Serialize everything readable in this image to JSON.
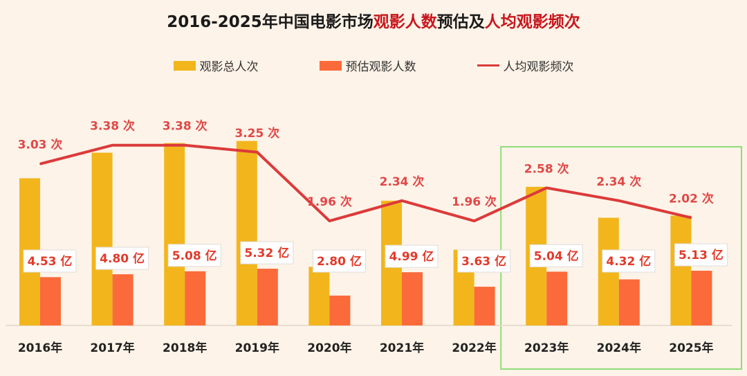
{
  "chart_data": {
    "type": "bar",
    "title_parts": [
      "2016-2025年中国电影市场",
      "观影人数",
      "预估及",
      "人均观影频次"
    ],
    "categories": [
      "2016年",
      "2017年",
      "2018年",
      "2019年",
      "2020年",
      "2021年",
      "2022年",
      "2023年",
      "2024年",
      "2025年"
    ],
    "series": [
      {
        "name": "观影总人次",
        "type": "bar",
        "color": "#f2b61c",
        "unit": "亿",
        "values": [
          13.8,
          16.2,
          17.1,
          17.3,
          5.5,
          11.7,
          7.1,
          13.0,
          10.1,
          10.3
        ]
      },
      {
        "name": "预估观影人数",
        "type": "bar",
        "color": "#fb6a3a",
        "unit": "亿",
        "values": [
          4.53,
          4.8,
          5.08,
          5.32,
          2.8,
          4.99,
          3.63,
          5.04,
          4.32,
          5.13
        ],
        "labels": [
          "4.53 亿",
          "4.80 亿",
          "5.08 亿",
          "5.32 亿",
          "2.80 亿",
          "4.99 亿",
          "3.63 亿",
          "5.04 亿",
          "4.32 亿",
          "5.13 亿"
        ]
      },
      {
        "name": "人均观影频次",
        "type": "line",
        "color": "#dc3a3a",
        "unit": "次",
        "values": [
          3.03,
          3.38,
          3.38,
          3.25,
          1.96,
          2.34,
          1.96,
          2.58,
          2.34,
          2.02
        ],
        "labels": [
          "3.03 次",
          "3.38 次",
          "3.38 次",
          "3.25 次",
          "1.96 次",
          "2.34 次",
          "1.96 次",
          "2.58 次",
          "2.34 次",
          "2.02 次"
        ]
      }
    ],
    "highlight_categories": [
      "2023年",
      "2024年",
      "2025年"
    ],
    "highlight_color": "#8fdc7a",
    "legend_position": "top",
    "grid": false
  }
}
